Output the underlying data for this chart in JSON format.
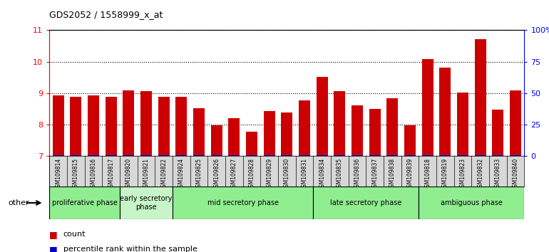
{
  "title": "GDS2052 / 1558999_x_at",
  "samples": [
    "GSM109814",
    "GSM109815",
    "GSM109816",
    "GSM109817",
    "GSM109820",
    "GSM109821",
    "GSM109822",
    "GSM109824",
    "GSM109825",
    "GSM109826",
    "GSM109827",
    "GSM109828",
    "GSM109829",
    "GSM109830",
    "GSM109831",
    "GSM109834",
    "GSM109835",
    "GSM109836",
    "GSM109837",
    "GSM109838",
    "GSM109839",
    "GSM109818",
    "GSM109819",
    "GSM109823",
    "GSM109832",
    "GSM109833",
    "GSM109840"
  ],
  "counts": [
    8.93,
    8.89,
    8.93,
    8.88,
    9.08,
    9.07,
    8.88,
    8.88,
    8.52,
    7.98,
    8.21,
    7.77,
    8.44,
    8.4,
    8.78,
    9.52,
    9.07,
    8.62,
    8.51,
    8.84,
    7.98,
    10.08,
    9.81,
    9.02,
    10.72,
    8.48,
    9.09
  ],
  "phases": [
    {
      "label": "proliferative phase",
      "start": 0,
      "end": 4,
      "color": "#90EE90"
    },
    {
      "label": "early secretory\nphase",
      "start": 4,
      "end": 7,
      "color": "#c8f5c8"
    },
    {
      "label": "mid secretory phase",
      "start": 7,
      "end": 15,
      "color": "#90EE90"
    },
    {
      "label": "late secretory phase",
      "start": 15,
      "end": 21,
      "color": "#90EE90"
    },
    {
      "label": "ambiguous phase",
      "start": 21,
      "end": 27,
      "color": "#90EE90"
    }
  ],
  "bar_color": "#cc0000",
  "percentile_color": "#0000cc",
  "ylim_left": [
    7,
    11
  ],
  "ylim_right": [
    0,
    100
  ],
  "yticks_left": [
    7,
    8,
    9,
    10,
    11
  ],
  "yticks_right": [
    0,
    25,
    50,
    75,
    100
  ],
  "ytick_labels_right": [
    "0",
    "25",
    "50",
    "75",
    "100%"
  ],
  "other_label": "other"
}
